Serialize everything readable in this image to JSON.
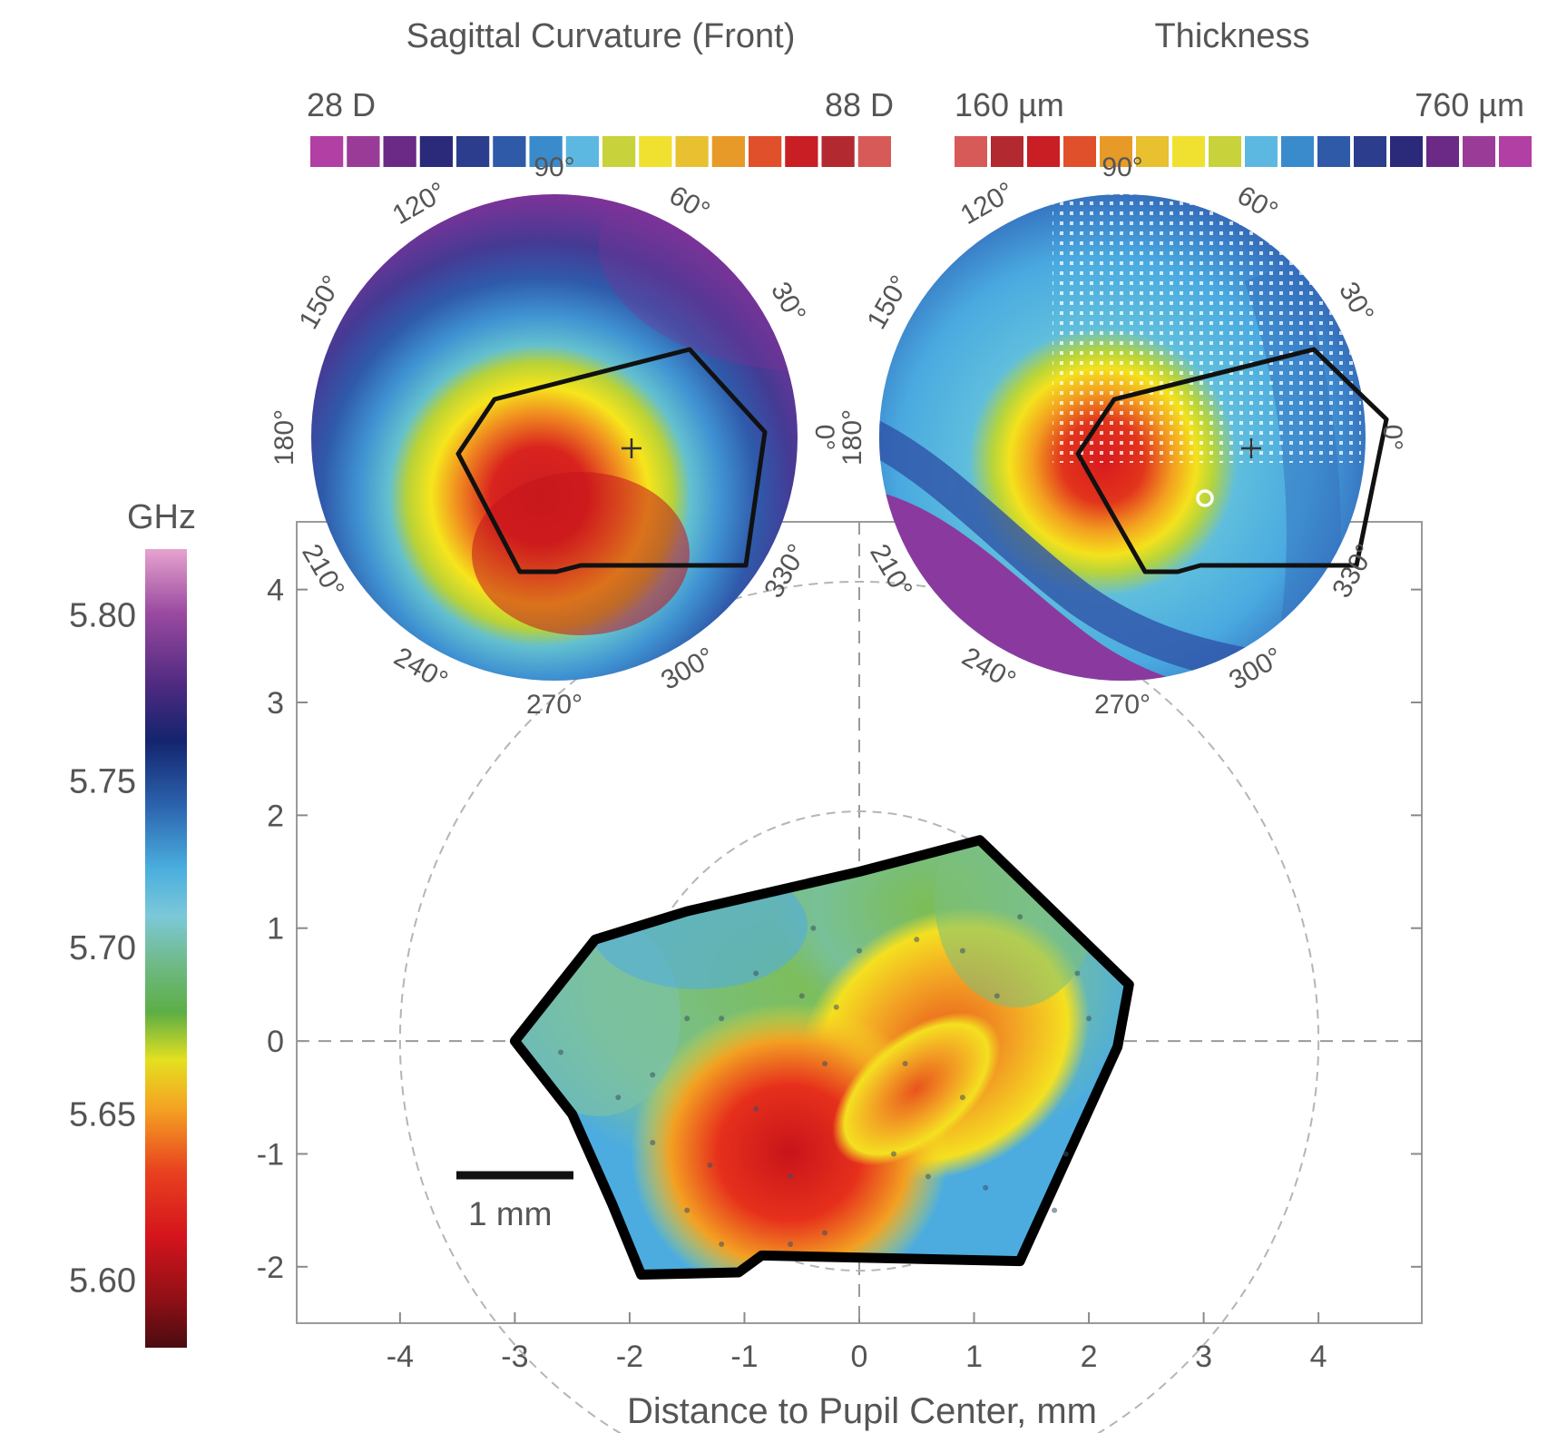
{
  "curvature_map": {
    "title": "Sagittal Curvature (Front)",
    "scale_min_label": "28 D",
    "scale_max_label": "88 D",
    "scale_colors": [
      "#b23fa3",
      "#9a3b98",
      "#6a2a86",
      "#2b2a7a",
      "#2c3d8e",
      "#2f5aa8",
      "#3a8bcc",
      "#5cb8e0",
      "#c8d23a",
      "#f0e030",
      "#e8c030",
      "#e89a28",
      "#e0502a",
      "#c81e24",
      "#b22a30",
      "#d85a58"
    ],
    "angle_labels": [
      "0°",
      "30°",
      "60°",
      "90°",
      "120°",
      "150°",
      "180°",
      "210°",
      "240°",
      "270°",
      "300°",
      "330°"
    ]
  },
  "thickness_map": {
    "title": "Thickness",
    "scale_min_label": "160 µm",
    "scale_max_label": "760 µm",
    "scale_colors": [
      "#d85a58",
      "#b22a30",
      "#c81e24",
      "#e0502a",
      "#e89a28",
      "#e8c030",
      "#f0e030",
      "#c8d23a",
      "#5cb8e0",
      "#3a8bcc",
      "#2f5aa8",
      "#2c3d8e",
      "#2b2a7a",
      "#6a2a86",
      "#9a3b98",
      "#b23fa3"
    ],
    "angle_labels": [
      "0°",
      "30°",
      "60°",
      "90°",
      "120°",
      "150°",
      "180°",
      "210°",
      "240°",
      "270°",
      "300°",
      "330°"
    ]
  },
  "colorbar": {
    "unit": "GHz",
    "tick_labels": [
      "5.80",
      "5.75",
      "5.70",
      "5.65",
      "5.60"
    ],
    "range": [
      5.58,
      5.82
    ]
  },
  "scale_bar": {
    "label": "1 mm"
  },
  "chart_data": {
    "type": "heatmap",
    "xlabel": "Distance to Pupil Center, mm",
    "ylabel": "",
    "xlim": [
      -4.9,
      4.9
    ],
    "ylim": [
      -2.5,
      4.6
    ],
    "x_ticks": [
      "-4",
      "-3",
      "-2",
      "-1",
      "0",
      "1",
      "2",
      "3",
      "4"
    ],
    "y_ticks": [
      "-2",
      "-1",
      "0",
      "1",
      "2",
      "3",
      "4"
    ],
    "colorbar_unit": "GHz",
    "colorbar_range": [
      5.58,
      5.82
    ],
    "boundary": [
      [
        -3.0,
        0.0
      ],
      [
        -2.3,
        0.9
      ],
      [
        -1.5,
        1.15
      ],
      [
        0.0,
        1.5
      ],
      [
        1.05,
        1.78
      ],
      [
        2.35,
        0.5
      ],
      [
        2.25,
        -0.05
      ],
      [
        1.4,
        -1.95
      ],
      [
        -0.85,
        -1.9
      ],
      [
        -1.05,
        -2.05
      ],
      [
        -1.9,
        -2.07
      ],
      [
        -2.15,
        -1.45
      ],
      [
        -2.5,
        -0.65
      ]
    ],
    "regions": [
      {
        "name": "red hotspot",
        "center": [
          -0.55,
          -1.2
        ],
        "value": 5.61
      },
      {
        "name": "orange ridge",
        "center": [
          0.7,
          -0.5
        ],
        "value": 5.65
      },
      {
        "name": "yellow ring",
        "center": [
          0.2,
          -0.6
        ],
        "value": 5.67
      },
      {
        "name": "green middle",
        "center": [
          0.3,
          0.6
        ],
        "value": 5.69
      },
      {
        "name": "blue rim",
        "center": [
          -2.0,
          0.2
        ],
        "value": 5.73
      }
    ]
  }
}
